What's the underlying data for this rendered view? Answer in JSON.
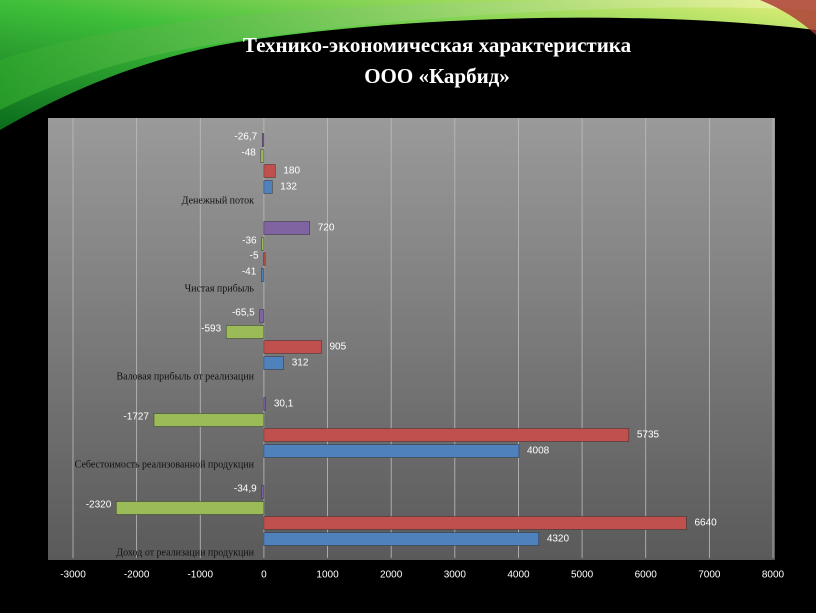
{
  "chart_data": {
    "type": "hbar",
    "title": [
      "Технико-экономическая  характеристика",
      "ООО «Карбид»"
    ],
    "categories": [
      "Доход от реализации продукции",
      "Себестоимость реализованной продукции",
      "Валовая прибыль от реализации",
      "Чистая прибыль",
      "Денежный поток"
    ],
    "series": [
      {
        "color": "#4f81bd",
        "values": [
          4320,
          4008,
          312,
          -41,
          132
        ]
      },
      {
        "color": "#c0504d",
        "values": [
          6640,
          5735,
          905,
          -5,
          180
        ]
      },
      {
        "color": "#9bbb59",
        "values": [
          -2320,
          -1727,
          -593,
          -36,
          -48
        ]
      },
      {
        "color": "#8064a2",
        "values": [
          -34.9,
          30.1,
          -65.5,
          720,
          -26.7
        ],
        "value_labels": [
          "-34,9",
          "30,1",
          "-65,5",
          "720",
          "-26,7"
        ]
      }
    ],
    "xlim": [
      -3000,
      8000
    ],
    "xticks": [
      -3000,
      -2000,
      -1000,
      0,
      1000,
      2000,
      3000,
      4000,
      5000,
      6000,
      7000,
      8000
    ],
    "grid": true
  }
}
